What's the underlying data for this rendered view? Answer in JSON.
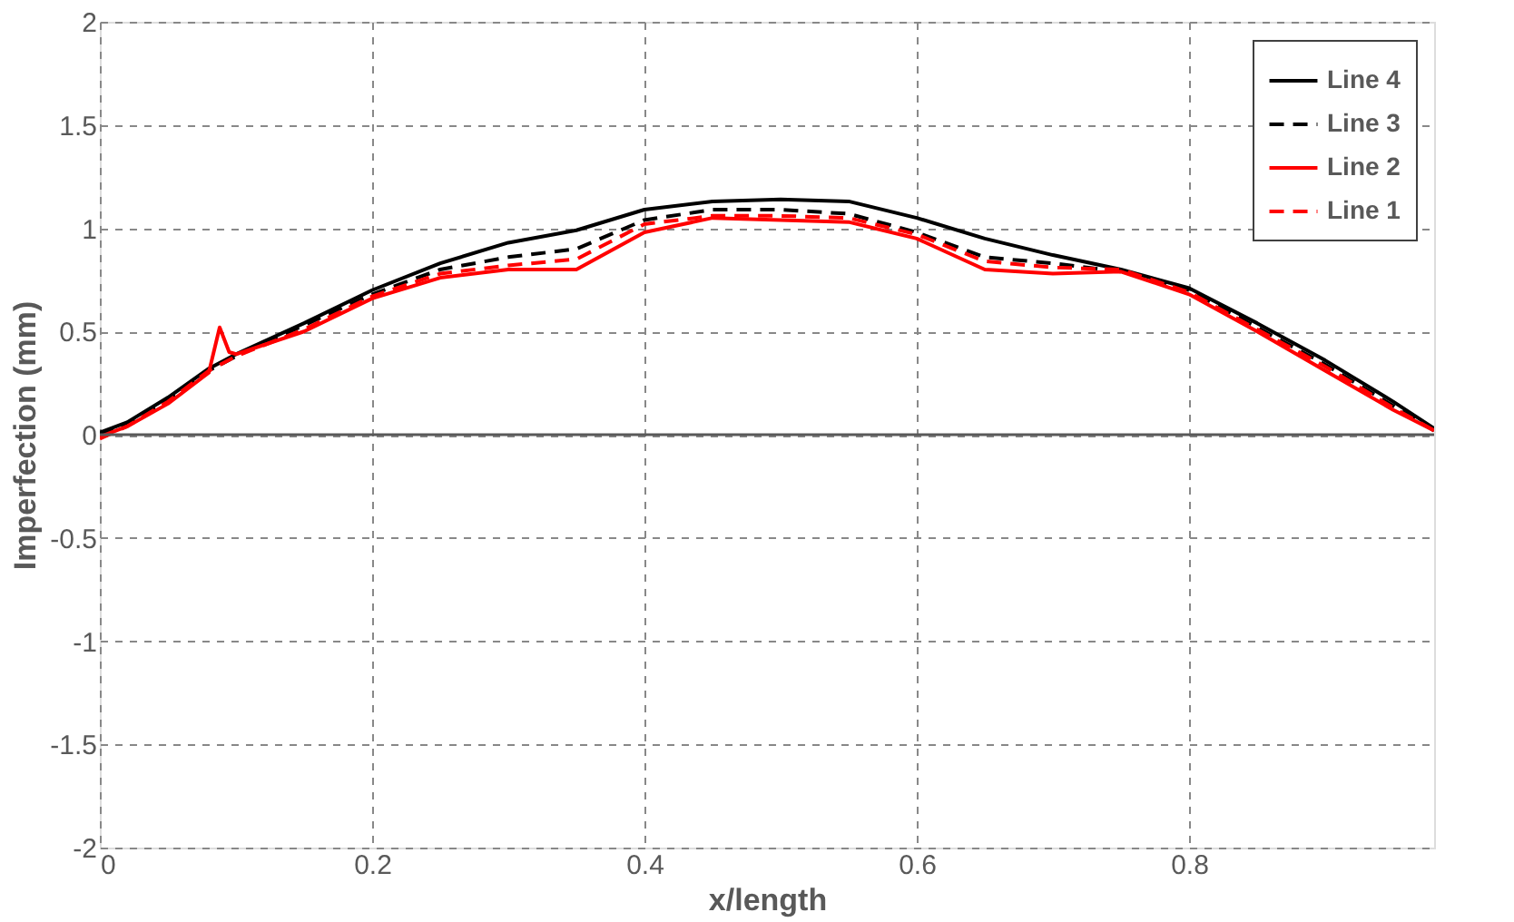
{
  "chart_data": {
    "type": "line",
    "xlabel": "x/length",
    "ylabel": "Imperfection (mm)",
    "xlim": [
      0,
      0.98
    ],
    "ylim": [
      -2,
      2
    ],
    "xticks": [
      0,
      0.2,
      0.4,
      0.6,
      0.8
    ],
    "yticks": [
      -2,
      -1.5,
      -1,
      -0.5,
      0,
      0.5,
      1,
      1.5,
      2
    ],
    "grid": true,
    "legend": "top right",
    "marker": "none",
    "series": [
      {
        "name": "Line 4",
        "color": "#000000",
        "line_style": "solid",
        "x": [
          0,
          0.02,
          0.05,
          0.08,
          0.1,
          0.15,
          0.2,
          0.25,
          0.3,
          0.35,
          0.4,
          0.45,
          0.5,
          0.55,
          0.6,
          0.65,
          0.7,
          0.75,
          0.8,
          0.85,
          0.9,
          0.95,
          0.98
        ],
        "values": [
          0.01,
          0.06,
          0.18,
          0.32,
          0.39,
          0.54,
          0.7,
          0.83,
          0.93,
          0.99,
          1.09,
          1.13,
          1.14,
          1.13,
          1.05,
          0.95,
          0.87,
          0.8,
          0.71,
          0.54,
          0.36,
          0.16,
          0.03
        ]
      },
      {
        "name": "Line 3",
        "color": "#000000",
        "line_style": "dashed",
        "x": [
          0,
          0.02,
          0.05,
          0.08,
          0.1,
          0.15,
          0.2,
          0.25,
          0.3,
          0.35,
          0.4,
          0.45,
          0.5,
          0.55,
          0.6,
          0.65,
          0.7,
          0.75,
          0.8,
          0.85,
          0.9,
          0.95,
          0.98
        ],
        "values": [
          0,
          0.05,
          0.17,
          0.31,
          0.38,
          0.53,
          0.68,
          0.8,
          0.86,
          0.9,
          1.04,
          1.09,
          1.09,
          1.07,
          0.98,
          0.86,
          0.83,
          0.79,
          0.7,
          0.52,
          0.34,
          0.14,
          0.02
        ]
      },
      {
        "name": "Line 2",
        "color": "#ff0000",
        "line_style": "solid",
        "x": [
          0,
          0.02,
          0.05,
          0.08,
          0.088,
          0.095,
          0.1,
          0.15,
          0.2,
          0.25,
          0.3,
          0.35,
          0.4,
          0.45,
          0.5,
          0.55,
          0.6,
          0.65,
          0.7,
          0.75,
          0.8,
          0.85,
          0.9,
          0.95,
          0.98
        ],
        "values": [
          -0.01,
          0.04,
          0.15,
          0.3,
          0.52,
          0.4,
          0.39,
          0.5,
          0.66,
          0.76,
          0.8,
          0.8,
          0.98,
          1.05,
          1.04,
          1.03,
          0.95,
          0.8,
          0.78,
          0.79,
          0.68,
          0.5,
          0.31,
          0.12,
          0.02
        ]
      },
      {
        "name": "Line 1",
        "color": "#ff0000",
        "line_style": "dashed",
        "x": [
          0,
          0.02,
          0.05,
          0.08,
          0.1,
          0.15,
          0.2,
          0.25,
          0.3,
          0.35,
          0.4,
          0.45,
          0.5,
          0.55,
          0.6,
          0.65,
          0.7,
          0.75,
          0.8,
          0.85,
          0.9,
          0.95,
          0.98
        ],
        "values": [
          -0.02,
          0.04,
          0.16,
          0.31,
          0.38,
          0.51,
          0.67,
          0.78,
          0.82,
          0.85,
          1.02,
          1.06,
          1.06,
          1.05,
          0.97,
          0.84,
          0.81,
          0.8,
          0.69,
          0.51,
          0.33,
          0.13,
          0.02
        ]
      }
    ]
  }
}
